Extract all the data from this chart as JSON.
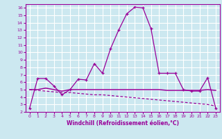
{
  "xlabel": "Windchill (Refroidissement éolien,°C)",
  "ylabel": "",
  "background_color": "#cce8f0",
  "line_color": "#990099",
  "grid_color": "#ffffff",
  "spine_color": "#990099",
  "xlim": [
    -0.5,
    23.5
  ],
  "ylim": [
    2,
    16.5
  ],
  "yticks": [
    2,
    3,
    4,
    5,
    6,
    7,
    8,
    9,
    10,
    11,
    12,
    13,
    14,
    15,
    16
  ],
  "xticks": [
    0,
    1,
    2,
    3,
    4,
    5,
    6,
    7,
    8,
    9,
    10,
    11,
    12,
    13,
    14,
    15,
    16,
    17,
    18,
    19,
    20,
    21,
    22,
    23
  ],
  "curve1_x": [
    0,
    1,
    2,
    3,
    4,
    5,
    6,
    7,
    8,
    9,
    10,
    11,
    12,
    13,
    14,
    15,
    16,
    17,
    18,
    19,
    20,
    21,
    22,
    23
  ],
  "curve1_y": [
    2.5,
    6.5,
    6.5,
    5.5,
    4.3,
    5.0,
    6.4,
    6.3,
    8.5,
    7.2,
    10.5,
    13.0,
    15.2,
    16.1,
    16.0,
    13.2,
    7.2,
    7.2,
    7.2,
    5.0,
    4.8,
    4.8,
    6.6,
    2.5
  ],
  "curve2_x": [
    0,
    1,
    2,
    3,
    4,
    5,
    6,
    7,
    8,
    9,
    10,
    11,
    12,
    13,
    14,
    15,
    16,
    17,
    18,
    19,
    20,
    21,
    22,
    23
  ],
  "curve2_y": [
    5.0,
    5.0,
    5.2,
    5.0,
    4.8,
    5.0,
    5.0,
    5.0,
    5.0,
    5.0,
    5.0,
    5.0,
    5.0,
    5.0,
    5.0,
    5.0,
    5.0,
    4.9,
    4.9,
    4.9,
    4.9,
    4.9,
    5.0,
    4.9
  ],
  "curve3_x": [
    0,
    1,
    2,
    3,
    4,
    5,
    6,
    7,
    8,
    9,
    10,
    11,
    12,
    13,
    14,
    15,
    16,
    17,
    18,
    19,
    20,
    21,
    22,
    23
  ],
  "curve3_y": [
    5.0,
    4.9,
    4.8,
    4.7,
    4.6,
    4.6,
    4.5,
    4.4,
    4.3,
    4.3,
    4.2,
    4.1,
    4.0,
    3.9,
    3.8,
    3.7,
    3.6,
    3.5,
    3.4,
    3.3,
    3.2,
    3.1,
    3.0,
    2.8
  ]
}
